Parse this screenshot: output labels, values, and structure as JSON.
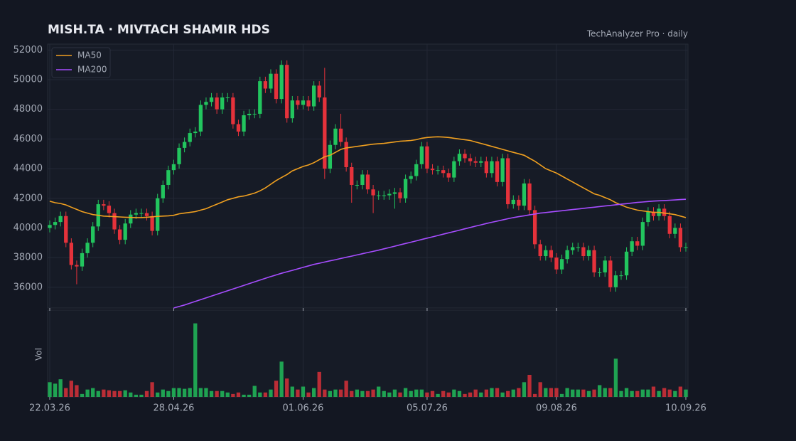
{
  "chart_data": {
    "type": "candlestick",
    "title": "MISH.TA  ·  MIVTACH SHAMIR HDS",
    "subtitle": "TechAnalyzer Pro · daily",
    "volume_label": "Vol",
    "categories": [
      "22.03.26",
      null,
      null,
      null,
      null,
      null,
      null,
      null,
      null,
      null,
      null,
      null,
      null,
      null,
      null,
      null,
      null,
      null,
      null,
      null,
      null,
      null,
      null,
      "28.04.26",
      null,
      null,
      null,
      null,
      null,
      null,
      null,
      null,
      null,
      null,
      null,
      null,
      null,
      null,
      null,
      null,
      null,
      null,
      null,
      null,
      null,
      null,
      null,
      "01.06.26",
      null,
      null,
      null,
      null,
      null,
      null,
      null,
      null,
      null,
      null,
      null,
      null,
      null,
      null,
      null,
      null,
      null,
      null,
      null,
      null,
      null,
      null,
      "05.07.26",
      null,
      null,
      null,
      null,
      null,
      null,
      null,
      null,
      null,
      null,
      null,
      null,
      null,
      null,
      null,
      null,
      null,
      null,
      null,
      null,
      null,
      null,
      null,
      "09.08.26",
      null,
      null,
      null,
      null,
      null,
      null,
      null,
      null,
      null,
      null,
      null,
      null,
      null,
      null,
      null,
      null,
      null,
      null,
      null,
      null,
      null,
      null,
      null,
      "10.09.26"
    ],
    "open": [
      40000,
      40200,
      40400,
      40800,
      39000,
      37500,
      37400,
      38300,
      39000,
      40100,
      41600,
      41500,
      41000,
      39900,
      39200,
      40300,
      40900,
      41000,
      41000,
      40800,
      39800,
      42000,
      42900,
      43900,
      44300,
      45400,
      45800,
      46400,
      46500,
      48300,
      48500,
      48800,
      48000,
      48800,
      48800,
      47000,
      46500,
      47600,
      47700,
      47700,
      49900,
      49400,
      50400,
      48700,
      51000,
      47400,
      48600,
      48300,
      48600,
      48200,
      49600,
      48800,
      44000,
      45600,
      46700,
      45800,
      44100,
      42900,
      42900,
      43600,
      42600,
      42200,
      42200,
      42200,
      42300,
      42400,
      42000,
      43300,
      43500,
      44300,
      45500,
      44000,
      43900,
      43900,
      43700,
      43400,
      44500,
      45000,
      44700,
      44500,
      44400,
      44500,
      43700,
      44500,
      43100,
      44700,
      41600,
      41900,
      41500,
      43000,
      41200,
      38900,
      38100,
      38500,
      38000,
      37200,
      37900,
      38500,
      38700,
      38700,
      38100,
      38500,
      37000,
      37000,
      37800,
      36000,
      36800,
      36800,
      38400,
      39100,
      38800,
      40400,
      41100,
      40800,
      41300,
      40800,
      39600,
      40000,
      38700
    ],
    "high": [
      40500,
      40700,
      41100,
      41100,
      39300,
      37800,
      38600,
      39300,
      40400,
      41900,
      41900,
      41800,
      41300,
      40200,
      40600,
      41200,
      41300,
      41300,
      41300,
      41100,
      42300,
      43200,
      44200,
      44600,
      45700,
      46100,
      46700,
      46800,
      48600,
      48800,
      49100,
      49100,
      49100,
      49100,
      49100,
      47300,
      47900,
      48000,
      48000,
      50200,
      50200,
      50700,
      50700,
      51300,
      51300,
      48900,
      48900,
      48900,
      48900,
      49900,
      49900,
      50800,
      45900,
      47000,
      47700,
      46100,
      44400,
      43200,
      43900,
      43900,
      42900,
      42500,
      42500,
      42600,
      42700,
      42700,
      43600,
      43800,
      44600,
      45800,
      45800,
      44300,
      44200,
      44200,
      44000,
      44800,
      45300,
      45300,
      45000,
      44800,
      44800,
      44800,
      44800,
      44800,
      45000,
      45000,
      42200,
      42200,
      43300,
      43300,
      41500,
      39200,
      38800,
      38800,
      38300,
      38200,
      38800,
      39000,
      39000,
      39000,
      38800,
      38800,
      37300,
      38100,
      38100,
      37100,
      37100,
      38700,
      39400,
      39400,
      40700,
      41400,
      41400,
      41600,
      41600,
      41100,
      40300,
      40300,
      39000
    ],
    "low": [
      39700,
      39900,
      40100,
      38700,
      37200,
      36200,
      37100,
      38000,
      38700,
      39800,
      41200,
      40700,
      39600,
      38900,
      38900,
      40000,
      40600,
      40700,
      40500,
      39500,
      39500,
      41700,
      42600,
      43600,
      44000,
      45100,
      45500,
      46100,
      46200,
      48000,
      48200,
      47700,
      47700,
      48500,
      46700,
      46200,
      46200,
      47300,
      47400,
      47400,
      49100,
      49100,
      48400,
      48400,
      47100,
      47100,
      48000,
      48000,
      47900,
      47900,
      48500,
      43300,
      43700,
      45300,
      45500,
      43800,
      41700,
      42600,
      42600,
      42300,
      41000,
      41900,
      41900,
      41900,
      41300,
      41700,
      41700,
      43000,
      43200,
      44000,
      43700,
      43600,
      43600,
      43400,
      43100,
      43100,
      44200,
      44400,
      44200,
      44100,
      44100,
      43400,
      43400,
      42800,
      42800,
      41300,
      41300,
      41200,
      41200,
      40900,
      38600,
      37800,
      37800,
      37700,
      36900,
      36900,
      37600,
      38200,
      38400,
      37800,
      37800,
      36700,
      36700,
      36700,
      35700,
      35700,
      36500,
      36500,
      38100,
      38500,
      38500,
      40100,
      40500,
      40500,
      40500,
      39300,
      39300,
      38400,
      38400
    ],
    "close": [
      40200,
      40400,
      40800,
      39000,
      37500,
      37400,
      38300,
      39000,
      40100,
      41600,
      41500,
      41000,
      39900,
      39200,
      40300,
      40900,
      41000,
      41000,
      40800,
      39800,
      42000,
      42900,
      43900,
      44300,
      45400,
      45800,
      46400,
      46500,
      48300,
      48500,
      48800,
      48000,
      48800,
      48800,
      47000,
      46500,
      47600,
      47700,
      47700,
      49900,
      49400,
      50400,
      48700,
      51000,
      47400,
      48600,
      48300,
      48600,
      48200,
      49600,
      48800,
      44000,
      45600,
      46700,
      45800,
      44100,
      42900,
      42900,
      43600,
      42600,
      42200,
      42200,
      42200,
      42300,
      42400,
      42000,
      43300,
      43500,
      44300,
      45500,
      44000,
      43900,
      43900,
      43700,
      43400,
      44500,
      45000,
      44700,
      44500,
      44400,
      44500,
      43700,
      44500,
      43100,
      44700,
      41600,
      41900,
      41500,
      43000,
      41200,
      38900,
      38100,
      38500,
      38000,
      37200,
      37900,
      38500,
      38700,
      38700,
      38100,
      38500,
      37000,
      37000,
      37800,
      36000,
      36800,
      36800,
      38400,
      39100,
      38800,
      40400,
      41100,
      40800,
      41300,
      40800,
      39600,
      40000,
      38700,
      38700
    ],
    "volume": [
      20,
      18,
      24,
      12,
      22,
      16,
      4,
      10,
      12,
      8,
      10,
      9,
      8,
      8,
      9,
      6,
      3,
      3,
      8,
      20,
      6,
      10,
      8,
      12,
      12,
      11,
      12,
      100,
      12,
      12,
      8,
      8,
      8,
      6,
      4,
      6,
      3,
      3,
      15,
      6,
      6,
      10,
      22,
      48,
      25,
      14,
      10,
      14,
      6,
      12,
      34,
      10,
      8,
      10,
      10,
      22,
      8,
      10,
      8,
      8,
      10,
      14,
      8,
      6,
      10,
      6,
      12,
      8,
      10,
      10,
      6,
      8,
      4,
      8,
      6,
      10,
      8,
      4,
      6,
      10,
      6,
      10,
      12,
      12,
      6,
      8,
      10,
      12,
      20,
      30,
      4,
      20,
      12,
      12,
      12,
      4,
      12,
      10,
      10,
      10,
      8,
      10,
      16,
      12,
      12,
      52,
      8,
      12,
      8,
      8,
      10,
      10,
      14,
      8,
      12,
      10,
      8,
      14,
      10
    ],
    "series": [
      {
        "name": "MA50",
        "color": "#f0a020",
        "values": [
          41800,
          41700,
          41650,
          41550,
          41400,
          41250,
          41100,
          41000,
          40900,
          40850,
          40800,
          40780,
          40760,
          40740,
          40720,
          40710,
          40700,
          40700,
          40720,
          40750,
          40780,
          40800,
          40820,
          40850,
          40950,
          41000,
          41050,
          41100,
          41200,
          41300,
          41450,
          41600,
          41750,
          41900,
          42000,
          42100,
          42150,
          42250,
          42350,
          42500,
          42700,
          42950,
          43200,
          43400,
          43600,
          43850,
          44000,
          44150,
          44250,
          44400,
          44600,
          44800,
          44900,
          45100,
          45300,
          45400,
          45450,
          45500,
          45550,
          45600,
          45650,
          45680,
          45700,
          45750,
          45800,
          45850,
          45870,
          45900,
          45950,
          46050,
          46100,
          46130,
          46150,
          46130,
          46100,
          46050,
          46000,
          45950,
          45900,
          45800,
          45700,
          45600,
          45500,
          45400,
          45300,
          45200,
          45100,
          45000,
          44900,
          44700,
          44500,
          44250,
          44000,
          43850,
          43700,
          43500,
          43300,
          43100,
          42900,
          42700,
          42500,
          42300,
          42200,
          42050,
          41900,
          41700,
          41550,
          41400,
          41300,
          41200,
          41150,
          41100,
          41050,
          41050,
          41000,
          40950,
          40900,
          40800,
          40700
        ]
      },
      {
        "name": "MA200",
        "color": "#a64dff",
        "values": [
          null,
          null,
          null,
          null,
          null,
          null,
          null,
          null,
          null,
          null,
          null,
          null,
          null,
          null,
          null,
          null,
          null,
          null,
          null,
          null,
          null,
          null,
          null,
          34600,
          34700,
          34800,
          34920,
          35040,
          35160,
          35280,
          35400,
          35520,
          35640,
          35760,
          35880,
          36000,
          36120,
          36240,
          36360,
          36480,
          36600,
          36720,
          36830,
          36940,
          37040,
          37140,
          37240,
          37340,
          37440,
          37540,
          37620,
          37700,
          37780,
          37860,
          37940,
          38020,
          38100,
          38180,
          38260,
          38340,
          38420,
          38500,
          38590,
          38680,
          38770,
          38860,
          38950,
          39040,
          39130,
          39220,
          39310,
          39400,
          39490,
          39580,
          39670,
          39760,
          39850,
          39940,
          40030,
          40120,
          40210,
          40300,
          40380,
          40460,
          40540,
          40620,
          40700,
          40760,
          40820,
          40880,
          40940,
          41000,
          41040,
          41080,
          41120,
          41160,
          41200,
          41240,
          41280,
          41320,
          41360,
          41400,
          41440,
          41480,
          41520,
          41560,
          41600,
          41640,
          41680,
          41720,
          41750,
          41780,
          41810,
          41830,
          41850,
          41870,
          41890,
          41910,
          41930
        ]
      }
    ],
    "up_color": "#22c55e",
    "down_color": "#e5323b",
    "ylim": [
      34600,
      52400
    ],
    "yticks": [
      36000,
      38000,
      40000,
      42000,
      44000,
      46000,
      48000,
      50000,
      52000
    ],
    "volume_ylim": [
      0,
      118
    ],
    "grid": true,
    "legend": "upper left"
  }
}
